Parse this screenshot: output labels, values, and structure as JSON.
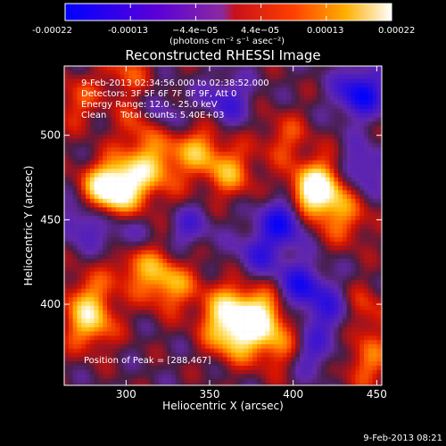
{
  "colors": {
    "background": "#000000",
    "text": "#ffffff"
  },
  "colorbar": {
    "tick_labels": [
      "-0.00022",
      "-0.00013",
      "−4.4e−05",
      "4.4e−05",
      "0.00013",
      "0.00022"
    ],
    "unit_label": "(photons cm⁻² s⁻¹ asec⁻²)",
    "range": [
      -0.00022,
      0.00022
    ],
    "colors": [
      "#0000ff",
      "#7a00c8",
      "#ff0000",
      "#ffb000",
      "#ffffff"
    ]
  },
  "chart_data": {
    "type": "heatmap",
    "title": "Reconstructed RHESSI Image",
    "xlabel": "Heliocentric X (arcsec)",
    "ylabel": "Heliocentric Y (arcsec)",
    "xlim": [
      263,
      453
    ],
    "ylim": [
      352,
      541
    ],
    "xticks": [
      300,
      350,
      400,
      450
    ],
    "yticks": [
      400,
      450,
      500
    ],
    "annotations": [
      "9-Feb-2013 02:34:56.000 to 02:38:52.000",
      "Detectors: 3F 5F 6F 7F 8F 9F, Att 0",
      "Energy Range: 12.0 - 25.0 keV",
      "Clean     Total counts: 5.40E+03"
    ],
    "peak_label": "Position of Peak = [288,467]",
    "peak": [
      288,
      467
    ],
    "sources": [
      {
        "x": 355,
        "y": 400,
        "amp": 1.0
      },
      {
        "x": 380,
        "y": 395,
        "amp": 0.85
      },
      {
        "x": 365,
        "y": 382,
        "amp": 0.85
      },
      {
        "x": 325,
        "y": 412,
        "amp": 0.7
      },
      {
        "x": 305,
        "y": 425,
        "amp": 0.6
      },
      {
        "x": 288,
        "y": 467,
        "amp": 0.95
      },
      {
        "x": 300,
        "y": 472,
        "amp": 0.7
      },
      {
        "x": 312,
        "y": 505,
        "amp": 0.65
      },
      {
        "x": 318,
        "y": 482,
        "amp": 0.55
      },
      {
        "x": 342,
        "y": 492,
        "amp": 0.6
      },
      {
        "x": 362,
        "y": 478,
        "amp": 0.6
      },
      {
        "x": 410,
        "y": 462,
        "amp": 0.8
      },
      {
        "x": 418,
        "y": 472,
        "amp": 0.7
      },
      {
        "x": 278,
        "y": 388,
        "amp": 0.7
      },
      {
        "x": 278,
        "y": 405,
        "amp": 0.45
      },
      {
        "x": 392,
        "y": 375,
        "amp": 0.55
      },
      {
        "x": 440,
        "y": 395,
        "amp": 0.5
      },
      {
        "x": 432,
        "y": 450,
        "amp": 0.45
      },
      {
        "x": 395,
        "y": 498,
        "amp": 0.4
      },
      {
        "x": 300,
        "y": 538,
        "amp": 0.4
      },
      {
        "x": 330,
        "y": 452,
        "amp": 0.4
      },
      {
        "x": 445,
        "y": 365,
        "amp": 0.5
      },
      {
        "x": 270,
        "y": 520,
        "amp": 0.4
      }
    ],
    "negatives": [
      {
        "x": 395,
        "y": 450,
        "amp": 0.9
      },
      {
        "x": 440,
        "y": 525,
        "amp": 0.9
      },
      {
        "x": 335,
        "y": 448,
        "amp": 0.7
      },
      {
        "x": 320,
        "y": 510,
        "amp": 0.6
      },
      {
        "x": 405,
        "y": 410,
        "amp": 0.75
      },
      {
        "x": 352,
        "y": 402,
        "amp": 0.5
      },
      {
        "x": 425,
        "y": 395,
        "amp": 0.6
      },
      {
        "x": 380,
        "y": 430,
        "amp": 0.5
      },
      {
        "x": 275,
        "y": 450,
        "amp": 0.5
      },
      {
        "x": 300,
        "y": 438,
        "amp": 0.45
      },
      {
        "x": 360,
        "y": 520,
        "amp": 0.5
      },
      {
        "x": 410,
        "y": 372,
        "amp": 0.5
      },
      {
        "x": 440,
        "y": 480,
        "amp": 0.5
      }
    ]
  },
  "footer": {
    "timestamp": "9-Feb-2013 08:21"
  }
}
